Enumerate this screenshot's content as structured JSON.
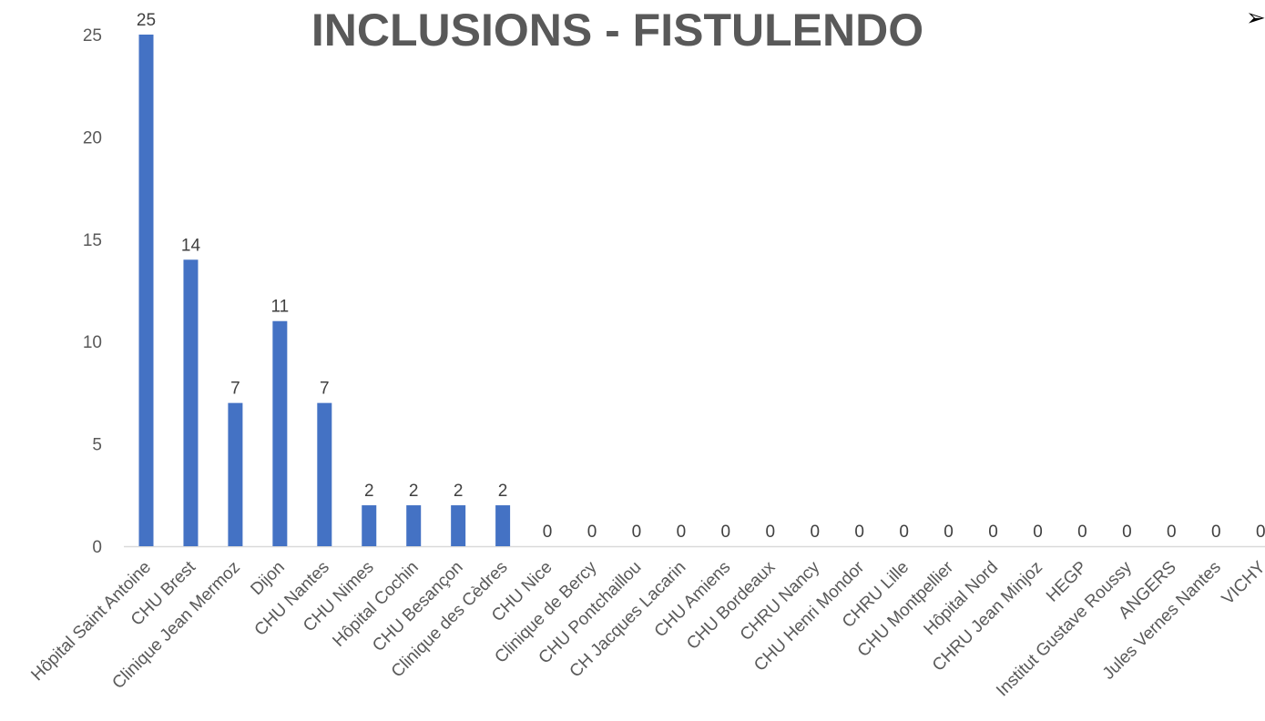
{
  "chart_data": {
    "type": "bar",
    "title": "INCLUSIONS - FISTULENDO",
    "xlabel": "",
    "ylabel": "",
    "ylim": [
      0,
      25
    ],
    "yticks": [
      0,
      5,
      10,
      15,
      20,
      25
    ],
    "grid": false,
    "legend": "none",
    "bar_color": "#4472C4",
    "categories": [
      "Hôpital Saint Antoine",
      "CHU Brest",
      "Clinique Jean Mermoz",
      "Dijon",
      "CHU Nantes",
      "CHU Nimes",
      "Hôpital Cochin",
      "CHU Besançon",
      "Clinique des Cèdres",
      "CHU Nice",
      "Clinique de Bercy",
      "CHU Pontchaillou",
      "CH Jacques Lacarin",
      "CHU Amiens",
      "CHU Bordeaux",
      "CHRU Nancy",
      "CHU Henri Mondor",
      "CHRU Lille",
      "CHU Montpellier",
      "Hôpital Nord",
      "CHRU Jean Minjoz",
      "HEGP",
      "Institut Gustave Roussy",
      "ANGERS",
      "Jules Vernes Nantes",
      "VICHY"
    ],
    "values": [
      25,
      14,
      7,
      11,
      7,
      2,
      2,
      2,
      2,
      0,
      0,
      0,
      0,
      0,
      0,
      0,
      0,
      0,
      0,
      0,
      0,
      0,
      0,
      0,
      0,
      0
    ],
    "data_labels": [
      "25",
      "14",
      "7",
      "11",
      "7",
      "2",
      "2",
      "2",
      "2",
      "0",
      "0",
      "0",
      "0",
      "0",
      "0",
      "0",
      "0",
      "0",
      "0",
      "0",
      "0",
      "0",
      "0",
      "0",
      "0",
      "0"
    ]
  },
  "decoration": {
    "arrow_icon": "arrow-right-icon",
    "arrow_glyph": "➢"
  }
}
